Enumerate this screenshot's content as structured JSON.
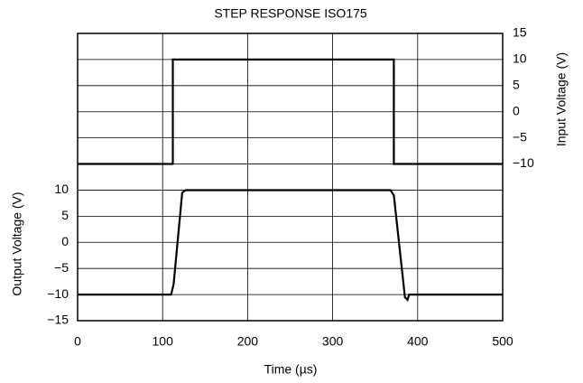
{
  "chart_data": {
    "type": "line",
    "title": "STEP RESPONSE ISO175",
    "xlabel": "Time (µs)",
    "ylabel": "Output Voltage (V)",
    "y2label": "Input Voltage (V)",
    "xlim": [
      0,
      500
    ],
    "xticks": [
      0,
      100,
      200,
      300,
      400,
      500
    ],
    "ylim": [
      -15,
      40
    ],
    "yticks": [
      {
        "value": -15,
        "label": "−15"
      },
      {
        "value": -10,
        "label": "−10"
      },
      {
        "value": -5,
        "label": "−5"
      },
      0,
      5,
      10
    ],
    "y2lim": [
      -40,
      15
    ],
    "y2ticks": [
      {
        "value": -10,
        "label": "−10"
      },
      {
        "value": -5,
        "label": "−5"
      },
      0,
      5,
      10,
      15
    ],
    "grid": true,
    "series": [
      {
        "color": "#000000",
        "axis": "y2",
        "x": [
          0,
          112,
          112,
          372,
          372,
          500
        ],
        "values": [
          -10,
          -10,
          10,
          10,
          -10,
          -10
        ]
      },
      {
        "color": "#000000",
        "axis": "y",
        "x": [
          0,
          110,
          113,
          123,
          127,
          368,
          372,
          385,
          388,
          390,
          500
        ],
        "values": [
          -10,
          -10,
          -8,
          9.5,
          10,
          10,
          9,
          -10.5,
          -11,
          -10,
          -10
        ]
      }
    ]
  }
}
